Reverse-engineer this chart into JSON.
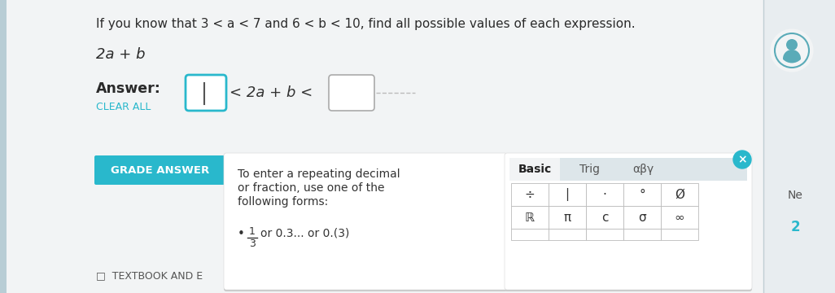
{
  "bg_color": "#dce6eb",
  "main_bg": "#e8edf0",
  "content_bg": "#f2f4f5",
  "title_text": "If you know that 3 < a < 7 and 6 < b < 10, find all possible values of each expression.",
  "expr_text": "2a + b",
  "answer_label": "Answer:",
  "clear_label": "CLEAR ALL",
  "answer_middle": "< 2a + b <",
  "grade_btn_text": "GRADE ANSWER",
  "grade_btn_color": "#29b8cc",
  "popup_text1": "To enter a repeating decimal",
  "popup_text2": "or fraction, use one of the",
  "popup_text3": "following forms:",
  "tab_basic": "Basic",
  "tab_trig": "Trig",
  "tab_abg": "αβγ",
  "grid_row1": [
    "÷",
    "|",
    "·",
    "°",
    "Ø"
  ],
  "grid_row2": [
    "ℝ",
    "π",
    "c",
    "σ",
    "∞"
  ],
  "close_btn_color": "#29b8cc",
  "textbook_text": "□  TEXTBOOK AND E",
  "ne_text": "Ne",
  "num_text": "2",
  "left_bar_color": "#b8cdd5",
  "right_bar_color": "#c8d8de"
}
